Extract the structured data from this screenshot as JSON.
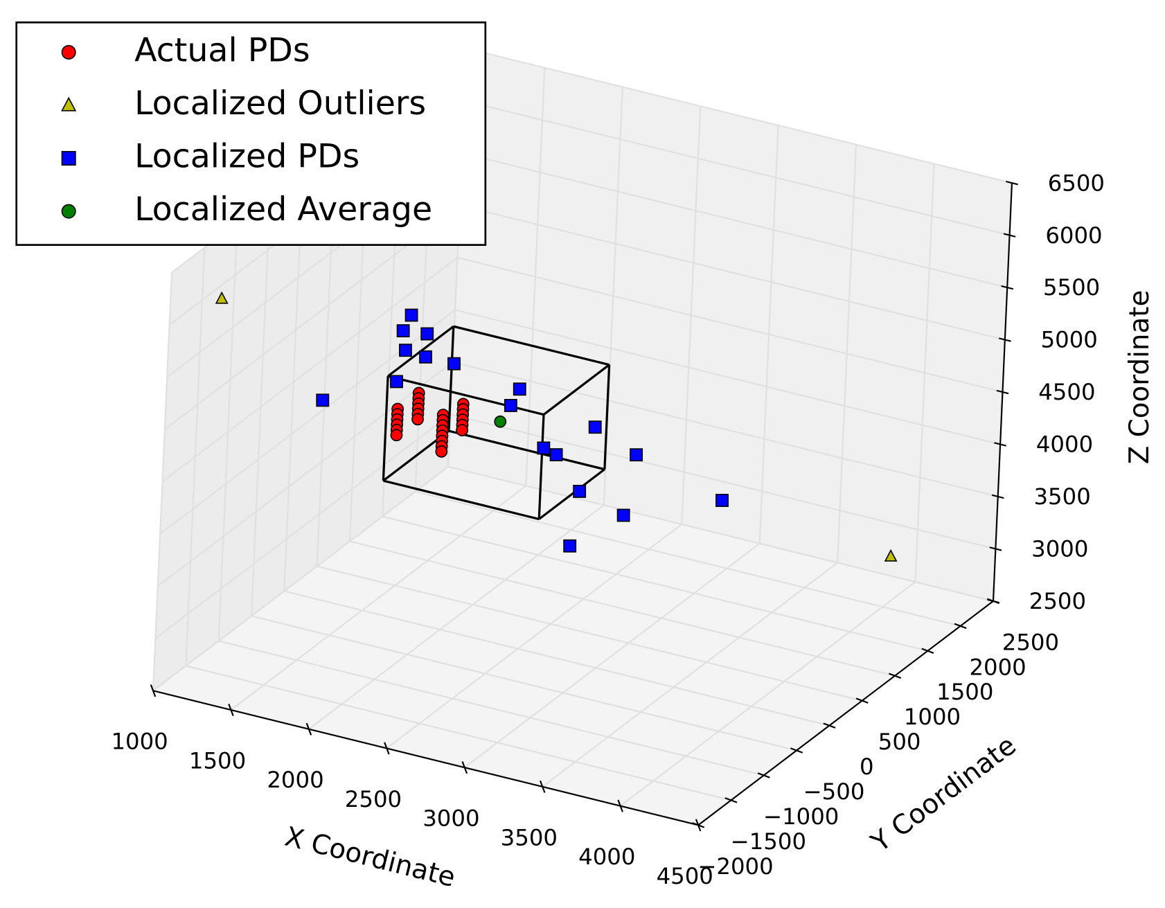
{
  "chart_data": {
    "type": "scatter3d",
    "xlabel": "X Coordinate",
    "ylabel": "Y Coordinate",
    "zlabel": "Z Coordinate",
    "xlim": [
      1000,
      4500
    ],
    "ylim": [
      -2000,
      2500
    ],
    "zlim": [
      2500,
      6500
    ],
    "xticks": [
      1000,
      1500,
      2000,
      2500,
      3000,
      3500,
      4000,
      4500
    ],
    "yticks": [
      {
        "value": -2000,
        "label": "−2000"
      },
      {
        "value": -1500,
        "label": "−1500"
      },
      {
        "value": -1000,
        "label": "−1000"
      },
      {
        "value": -500,
        "label": "−500"
      },
      0,
      500,
      1000,
      1500,
      2000,
      2500
    ],
    "zticks": [
      2500,
      3000,
      3500,
      4000,
      4500,
      5000,
      5500,
      6000,
      6500
    ],
    "grid": true,
    "legend_position": "upper left",
    "box": {
      "x": [
        2000,
        3000
      ],
      "y": [
        -1000,
        0
      ],
      "z": [
        4400,
        5400
      ],
      "color": "#000000"
    },
    "series": [
      {
        "name": "Actual PDs",
        "color": "#ff0000",
        "marker": "circle",
        "x": [
          1870,
          1870,
          1870,
          1870,
          1870,
          1870,
          2000,
          2000,
          2000,
          2000,
          2000,
          2000,
          2160,
          2160,
          2160,
          2160,
          2160,
          2160,
          2160,
          2160,
          2285,
          2285,
          2285,
          2285,
          2285,
          2285
        ],
        "y": [
          -500,
          -500,
          -500,
          -500,
          -500,
          -500,
          -500,
          -500,
          -500,
          -500,
          -500,
          -500,
          -500,
          -500,
          -500,
          -500,
          -500,
          -500,
          -500,
          -500,
          -500,
          -500,
          -500,
          -500,
          -500,
          -500
        ],
        "z": [
          4800,
          4750,
          4700,
          4650,
          4600,
          4550,
          5000,
          4950,
          4900,
          4850,
          4800,
          4750,
          4850,
          4800,
          4750,
          4700,
          4650,
          4600,
          4550,
          4500,
          5000,
          4950,
          4900,
          4850,
          4800,
          4750
        ]
      },
      {
        "name": "Localized Outliers",
        "color": "#bfbf00",
        "marker": "triangle",
        "x": [
          1124,
          4239
        ],
        "y": [
          -1500,
          1500
        ],
        "z": [
          6057,
          3307
        ]
      },
      {
        "name": "Localized PDs",
        "color": "#0000ff",
        "marker": "square",
        "x": [
          1931,
          1883,
          2036,
          1903,
          2033,
          2215,
          1855,
          1391,
          2639,
          2587,
          3129,
          2808,
          2890,
          3398,
          3048,
          3334,
          3956,
          3002
        ],
        "y": [
          -500,
          -500,
          -500,
          -500,
          -500,
          -500,
          -500,
          -500,
          -500,
          -500,
          -500,
          -500,
          -500,
          -500,
          -500,
          -500,
          -500,
          -500
        ],
        "z": [
          5720,
          5553,
          5580,
          5374,
          5358,
          5360,
          5057,
          4708,
          5273,
          5097,
          5089,
          4771,
          4737,
          4923,
          4445,
          4321,
          4692,
          3906
        ]
      },
      {
        "name": "Localized Average",
        "color": "#008000",
        "marker": "circle",
        "x": [
          2525
        ],
        "y": [
          -500
        ],
        "z": [
          4920
        ]
      }
    ]
  }
}
